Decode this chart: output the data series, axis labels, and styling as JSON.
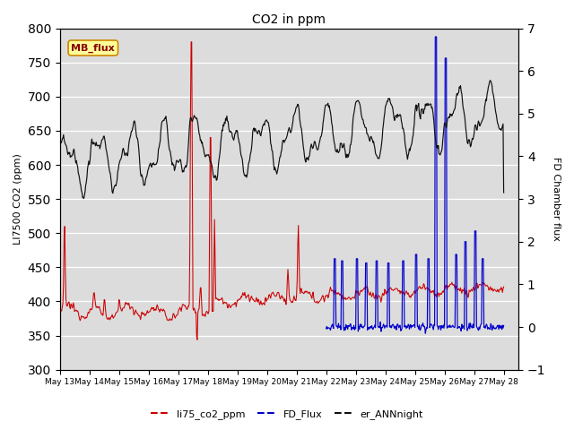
{
  "title": "CO2 in ppm",
  "ylabel_left": "LI7500 CO2 (ppm)",
  "ylabel_right": "FD Chamber flux",
  "ylim_left": [
    300,
    800
  ],
  "ylim_right": [
    -1.0,
    7.0
  ],
  "yticks_left": [
    300,
    350,
    400,
    450,
    500,
    550,
    600,
    650,
    700,
    750,
    800
  ],
  "yticks_right": [
    -1.0,
    0.0,
    1.0,
    2.0,
    3.0,
    4.0,
    5.0,
    6.0,
    7.0
  ],
  "bg_color": "#dcdcdc",
  "grid_color": "white",
  "line_red": "#cc0000",
  "line_blue": "#0000cc",
  "line_black": "#111111",
  "legend_label_red": "li75_co2_ppm",
  "legend_label_blue": "FD_Flux",
  "legend_label_black": "er_ANNnight",
  "annotation_text": "MB_flux",
  "annotation_color": "#8b0000",
  "annotation_bg": "#ffff99",
  "annotation_border": "#cc8800",
  "figsize": [
    6.4,
    4.8
  ],
  "dpi": 100,
  "xlim": [
    0,
    15.5
  ],
  "xtick_positions": [
    0,
    1,
    2,
    3,
    4,
    5,
    6,
    7,
    8,
    9,
    10,
    11,
    12,
    13,
    14,
    15
  ],
  "xtick_labels": [
    "May 13",
    "May 14",
    "May 15",
    "May 16",
    "May 17",
    "May 18",
    "May 19",
    "May 20",
    "May 21",
    "May 22",
    "May 23",
    "May 24",
    "May 25",
    "May 26",
    "May 27",
    "May 28"
  ]
}
